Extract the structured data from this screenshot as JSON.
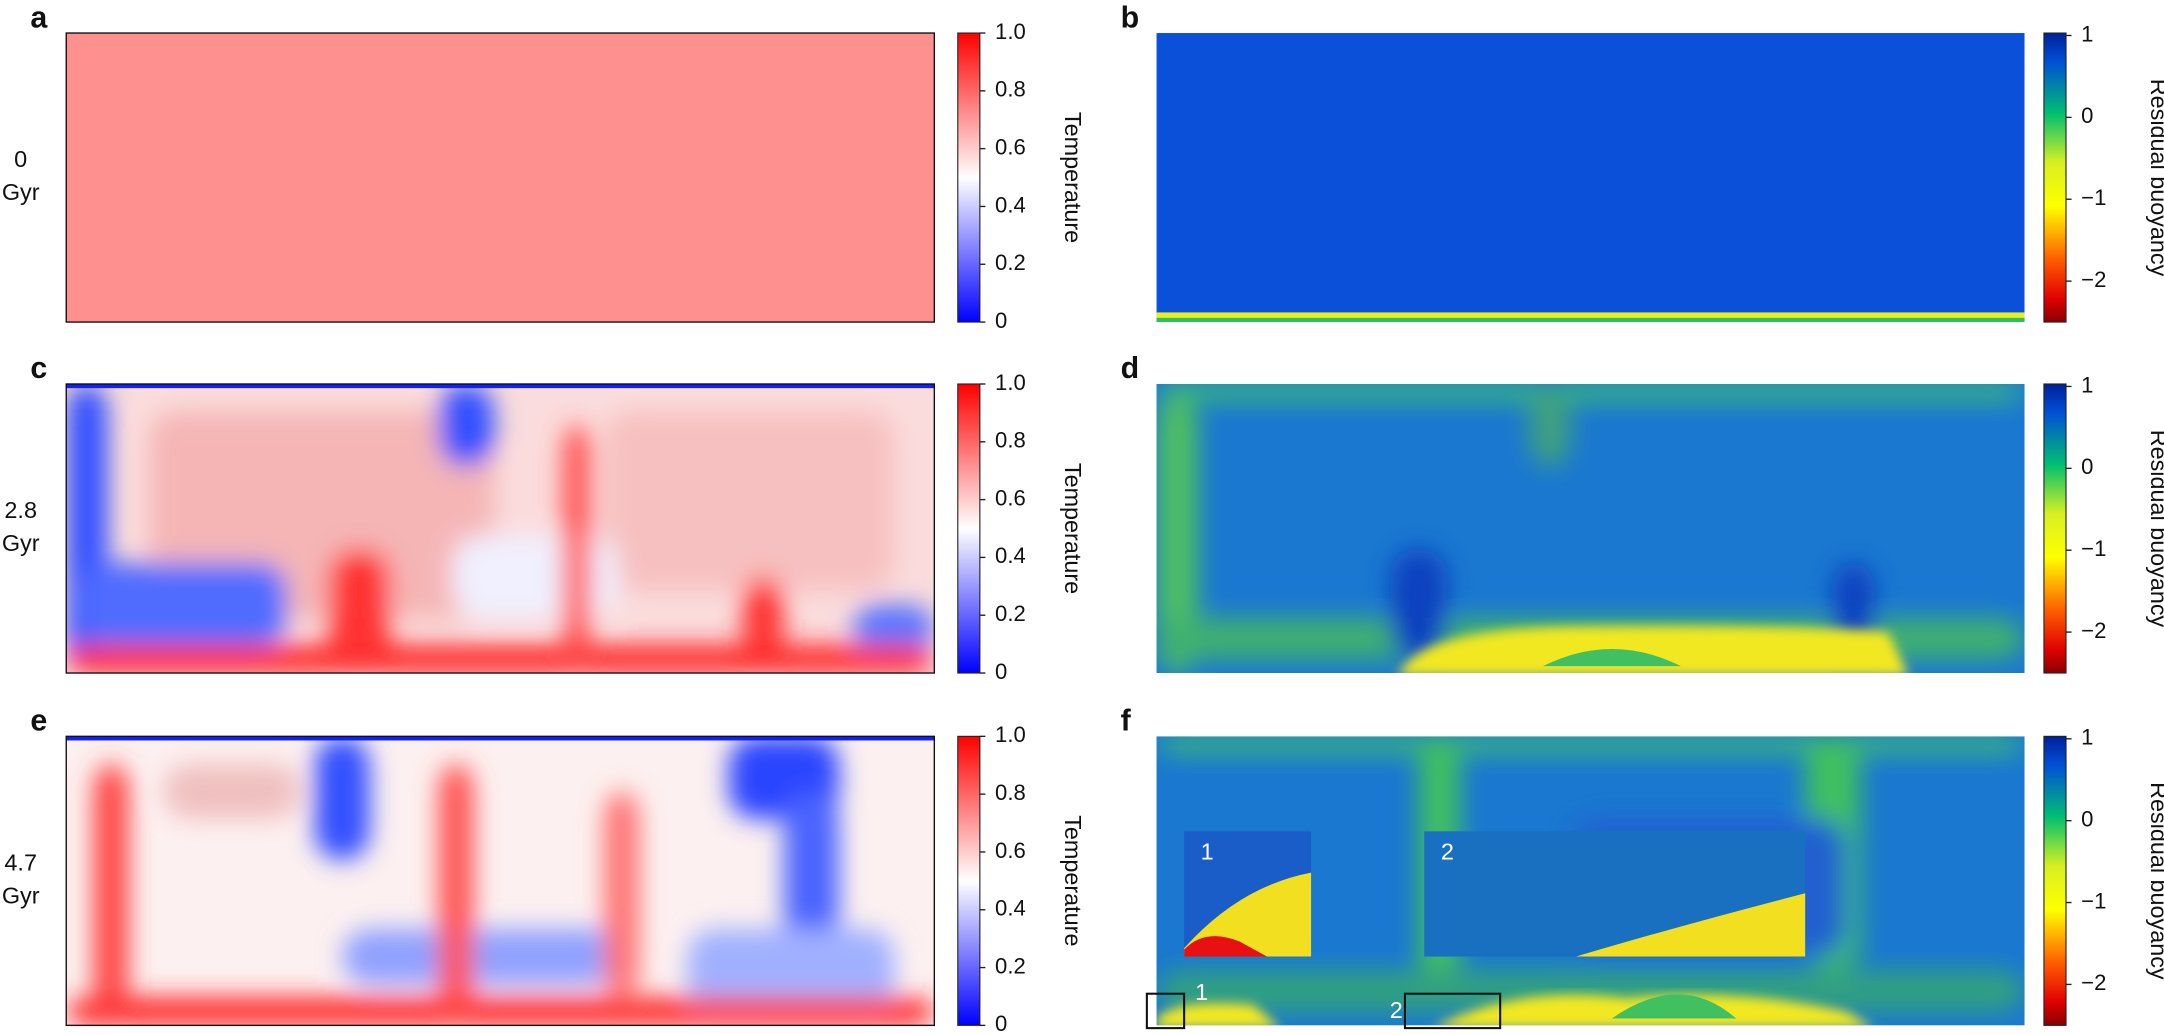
{
  "panels": [
    {
      "letter": "a",
      "time": "0",
      "unit": "Gyr",
      "colorbar_label": "Temperature"
    },
    {
      "letter": "b",
      "colorbar_label": "Residual buoyancy"
    },
    {
      "letter": "c",
      "time": "2.8",
      "unit": "Gyr",
      "colorbar_label": "Temperature"
    },
    {
      "letter": "d",
      "colorbar_label": "Residual buoyancy"
    },
    {
      "letter": "e",
      "time": "4.7",
      "unit": "Gyr",
      "colorbar_label": "Temperature"
    },
    {
      "letter": "f",
      "colorbar_label": "Residual buoyancy"
    }
  ],
  "temperature_scale": {
    "range": [
      0,
      1
    ],
    "ticks": [
      {
        "value": 1,
        "label": "1.0"
      },
      {
        "value": 0.8,
        "label": "0.8"
      },
      {
        "value": 0.6,
        "label": "0.6"
      },
      {
        "value": 0.4,
        "label": "0.4"
      },
      {
        "value": 0.2,
        "label": "0.2"
      },
      0
    ]
  },
  "buoyancy_scale": {
    "range": [
      -2.5,
      1.03
    ],
    "ticks": [
      1,
      0,
      {
        "value": -1,
        "label": "−1"
      },
      {
        "value": -2,
        "label": "−2"
      }
    ]
  },
  "insets": {
    "zoom_labels": [
      "1",
      "2"
    ],
    "box_labels": [
      "1",
      "2"
    ]
  }
}
